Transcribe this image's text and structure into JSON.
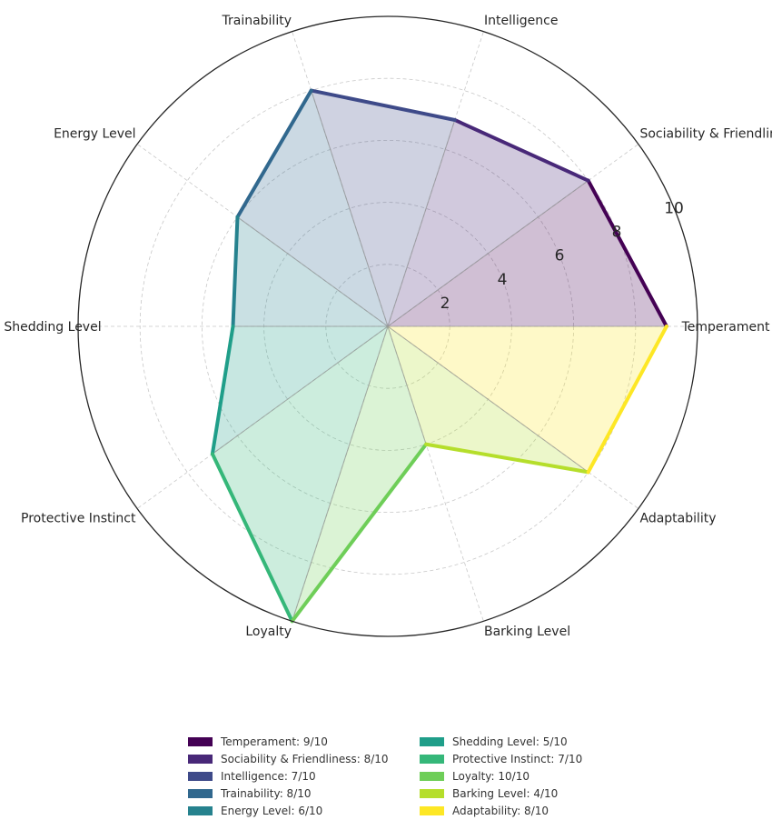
{
  "chart_data": {
    "type": "radar",
    "title": "",
    "rlim": [
      0,
      10
    ],
    "rticks": [
      2,
      4,
      6,
      8,
      10
    ],
    "grid": true,
    "legend_position": "bottom-center",
    "categories": [
      "Temperament",
      "Sociability & Friendliness",
      "Intelligence",
      "Trainability",
      "Energy Level",
      "Shedding Level",
      "Protective Instinct",
      "Loyalty",
      "Barking Level",
      "Adaptability"
    ],
    "values": [
      9,
      8,
      7,
      8,
      6,
      5,
      7,
      10,
      4,
      8
    ],
    "colors": [
      "#440154",
      "#482878",
      "#3e4a89",
      "#31688e",
      "#26828e",
      "#1f9e89",
      "#35b779",
      "#6ece58",
      "#b5de2b",
      "#fde725"
    ],
    "legend": [
      "Temperament: 9/10",
      "Sociability & Friendliness: 8/10",
      "Intelligence: 7/10",
      "Trainability: 8/10",
      "Energy Level: 6/10",
      "Shedding Level: 5/10",
      "Protective Instinct: 7/10",
      "Loyalty: 10/10",
      "Barking Level: 4/10",
      "Adaptability: 8/10"
    ]
  }
}
